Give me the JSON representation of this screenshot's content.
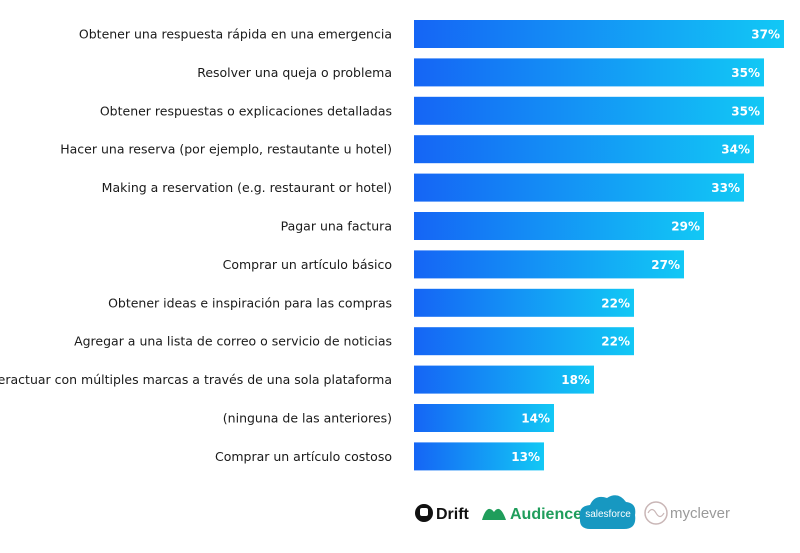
{
  "chart_data": {
    "type": "bar",
    "orientation": "horizontal",
    "categories": [
      "Obtener una respuesta rápida en una emergencia",
      "Resolver una queja o problema",
      "Obtener respuestas o explicaciones detalladas",
      "Hacer una reserva (por ejemplo, restautante u hotel)",
      "Making a reservation (e.g. restaurant or hotel)",
      "Pagar una factura",
      "Comprar un artículo básico",
      "Obtener ideas e inspiración para las compras",
      "Agregar a una lista de correo o servicio de noticias",
      "Interactuar con múltiples marcas a través de una sola plataforma",
      "(ninguna de las anteriores)",
      "Comprar un artículo costoso"
    ],
    "values": [
      37,
      35,
      35,
      34,
      33,
      29,
      27,
      22,
      22,
      18,
      14,
      13
    ],
    "value_labels": [
      "37%",
      "35%",
      "35%",
      "34%",
      "33%",
      "29%",
      "27%",
      "22%",
      "22%",
      "18%",
      "14%",
      "13%"
    ],
    "unit": "%",
    "xlim": [
      0,
      37
    ],
    "gradient": {
      "from": "#1565f5",
      "to": "#12c8f5"
    },
    "title": "",
    "xlabel": "",
    "ylabel": ""
  },
  "logos": {
    "drift": "Drift",
    "audience": "Audience",
    "salesforce": "salesforce",
    "myclever": "myclever"
  },
  "logo_colors": {
    "drift": "#111111",
    "audience": "#1f9d5b",
    "salesforce": "#1798c1",
    "myclever": "#9a9a9a"
  }
}
